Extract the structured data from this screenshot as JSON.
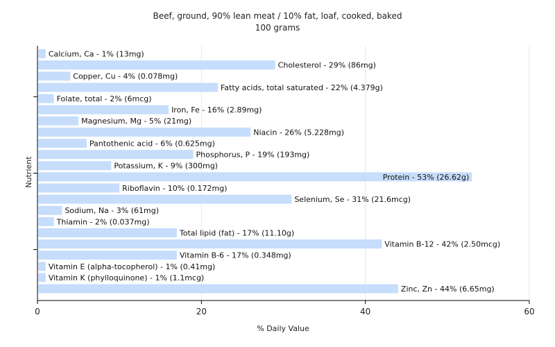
{
  "chart_data": {
    "type": "bar",
    "orientation": "horizontal",
    "title": "Beef, ground, 90% lean meat / 10% fat, loaf, cooked, baked",
    "subtitle": "100 grams",
    "xlabel": "% Daily Value",
    "ylabel": "Nutrient",
    "xlim": [
      0,
      60
    ],
    "xticks": [
      0,
      20,
      40,
      60
    ],
    "grid": true,
    "bar_color": "#c6ddfb",
    "categories": [
      "Calcium, Ca",
      "Cholesterol",
      "Copper, Cu",
      "Fatty acids, total saturated",
      "Folate, total",
      "Iron, Fe",
      "Magnesium, Mg",
      "Niacin",
      "Pantothenic acid",
      "Phosphorus, P",
      "Potassium, K",
      "Protein",
      "Riboflavin",
      "Selenium, Se",
      "Sodium, Na",
      "Thiamin",
      "Total lipid (fat)",
      "Vitamin B-12",
      "Vitamin B-6",
      "Vitamin E (alpha-tocopherol)",
      "Vitamin K (phylloquinone)",
      "Zinc, Zn"
    ],
    "values": [
      1,
      29,
      4,
      22,
      2,
      16,
      5,
      26,
      6,
      19,
      9,
      53,
      10,
      31,
      3,
      2,
      17,
      42,
      17,
      1,
      1,
      44
    ],
    "labels": [
      "Calcium, Ca - 1% (13mg)",
      "Cholesterol - 29% (86mg)",
      "Copper, Cu - 4% (0.078mg)",
      "Fatty acids, total saturated - 22% (4.379g)",
      "Folate, total - 2% (6mcg)",
      "Iron, Fe - 16% (2.89mg)",
      "Magnesium, Mg - 5% (21mg)",
      "Niacin - 26% (5.228mg)",
      "Pantothenic acid - 6% (0.625mg)",
      "Phosphorus, P - 19% (193mg)",
      "Potassium, K - 9% (300mg)",
      "Protein - 53% (26.62g)",
      "Riboflavin - 10% (0.172mg)",
      "Selenium, Se - 31% (21.6mcg)",
      "Sodium, Na - 3% (61mg)",
      "Thiamin - 2% (0.037mg)",
      "Total lipid (fat) - 17% (11.10g)",
      "Vitamin B-12 - 42% (2.50mcg)",
      "Vitamin B-6 - 17% (0.348mg)",
      "Vitamin E (alpha-tocopherol) - 1% (0.41mg)",
      "Vitamin K (phylloquinone) - 1% (1.1mcg)",
      "Zinc, Zn - 44% (6.65mg)"
    ]
  }
}
